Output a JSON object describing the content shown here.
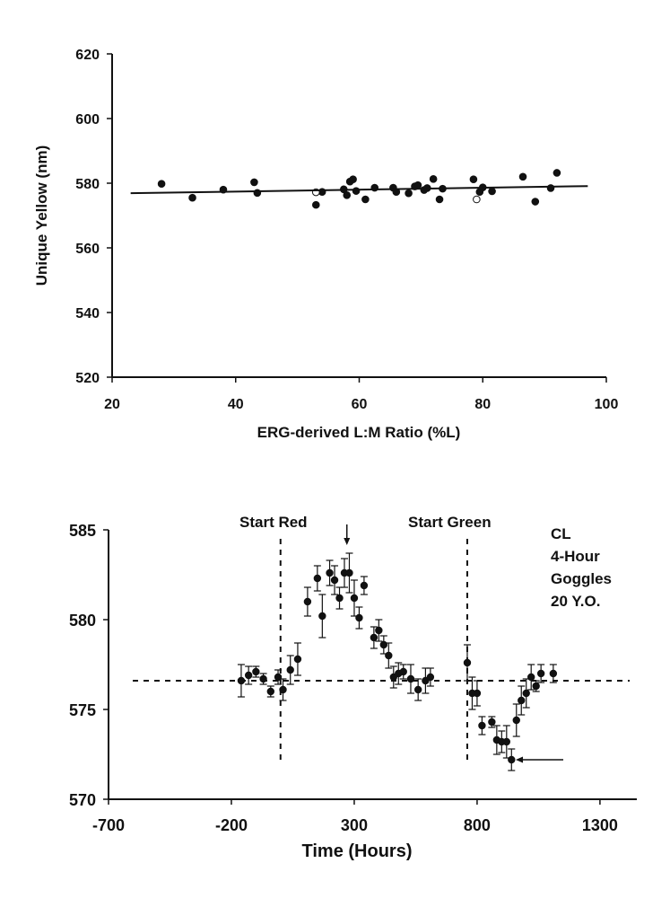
{
  "chart_data": [
    {
      "type": "scatter",
      "title": "",
      "xlabel": "ERG-derived L:M Ratio (%L)",
      "ylabel": "Unique Yellow (nm)",
      "xlim": [
        20,
        100
      ],
      "ylim": [
        520,
        620
      ],
      "x_ticks": [
        "20",
        "40",
        "60",
        "80",
        "100"
      ],
      "y_ticks": [
        "520",
        "540",
        "560",
        "580",
        "600",
        "620"
      ],
      "grid": false,
      "legend": "none",
      "series": [
        {
          "marker": "filled-circle",
          "x": [
            28,
            33,
            38,
            43,
            43.5,
            53,
            54,
            57.5,
            58,
            58.5,
            59,
            59.5,
            61,
            62.5,
            65.5,
            66,
            68,
            69,
            69.5,
            70.5,
            71,
            72,
            73,
            73.5,
            78.5,
            79.5,
            80,
            81.5,
            86.5,
            88.5,
            91,
            92
          ],
          "y": [
            579.8,
            575.5,
            578.0,
            580.3,
            577.0,
            573.3,
            577.3,
            578.1,
            576.3,
            580.5,
            581.2,
            577.6,
            575.0,
            578.6,
            578.6,
            577.3,
            576.9,
            579.0,
            579.4,
            577.9,
            578.5,
            581.3,
            575.0,
            578.3,
            581.2,
            577.3,
            578.7,
            577.5,
            582.0,
            574.3,
            578.5,
            583.2
          ]
        },
        {
          "marker": "open-circle",
          "x": [
            53,
            79
          ],
          "y": [
            577.2,
            575.0
          ]
        }
      ],
      "fit_line": {
        "x": [
          23,
          97
        ],
        "y": [
          576.9,
          579.1
        ]
      }
    },
    {
      "type": "scatter",
      "title": "",
      "xlabel": "Time (Hours)",
      "ylabel": "",
      "xlim": [
        -700,
        1450
      ],
      "ylim": [
        570,
        585
      ],
      "x_ticks": [
        "-700",
        "-200",
        "300",
        "800",
        "1300"
      ],
      "y_ticks": [
        "570",
        "575",
        "580",
        "585"
      ],
      "grid": false,
      "legend": "none",
      "baseline": 576.6,
      "vlines": [
        0,
        760
      ],
      "annotations": [
        "Start Red",
        "Start Green"
      ],
      "arrows": [
        {
          "direction": "down",
          "x": 270
        },
        {
          "direction": "left",
          "x": 950,
          "y": 572.2
        }
      ],
      "info_text": [
        "CL",
        "4-Hour",
        "Goggles",
        "20 Y.O."
      ],
      "series": [
        {
          "marker": "filled-circle",
          "error_bars": true,
          "x": [
            -160,
            -130,
            -100,
            -70,
            -40,
            -10,
            10,
            40,
            70,
            110,
            150,
            170,
            200,
            220,
            240,
            260,
            280,
            300,
            320,
            340,
            380,
            400,
            420,
            440,
            460,
            480,
            500,
            530,
            560,
            590,
            610,
            760,
            780,
            800,
            820,
            860,
            880,
            900,
            920,
            940,
            960,
            980,
            1000,
            1020,
            1040,
            1060,
            1110
          ],
          "y": [
            576.6,
            576.9,
            577.1,
            576.7,
            576.0,
            576.8,
            576.1,
            577.2,
            577.8,
            581.0,
            582.3,
            580.2,
            582.6,
            582.2,
            581.2,
            582.6,
            582.6,
            581.2,
            580.1,
            581.9,
            579.0,
            579.4,
            578.6,
            578.0,
            576.8,
            577.0,
            577.1,
            576.7,
            576.1,
            576.6,
            576.8,
            577.6,
            575.9,
            575.9,
            574.1,
            574.3,
            573.3,
            573.2,
            573.2,
            572.2,
            574.4,
            575.5,
            575.9,
            576.8,
            576.3,
            577.0,
            577.0
          ],
          "err": [
            0.9,
            0.5,
            0.3,
            0.3,
            0.3,
            0.4,
            0.6,
            0.8,
            0.9,
            0.8,
            0.7,
            1.2,
            0.7,
            0.8,
            0.6,
            0.8,
            1.1,
            1.0,
            0.6,
            0.5,
            0.6,
            0.6,
            0.5,
            0.7,
            0.6,
            0.6,
            0.4,
            0.8,
            0.6,
            0.7,
            0.5,
            1.0,
            0.9,
            0.7,
            0.5,
            0.3,
            0.8,
            0.6,
            0.9,
            0.6,
            0.9,
            0.8,
            0.8,
            0.7,
            0.3,
            0.5,
            0.5
          ]
        }
      ]
    }
  ]
}
